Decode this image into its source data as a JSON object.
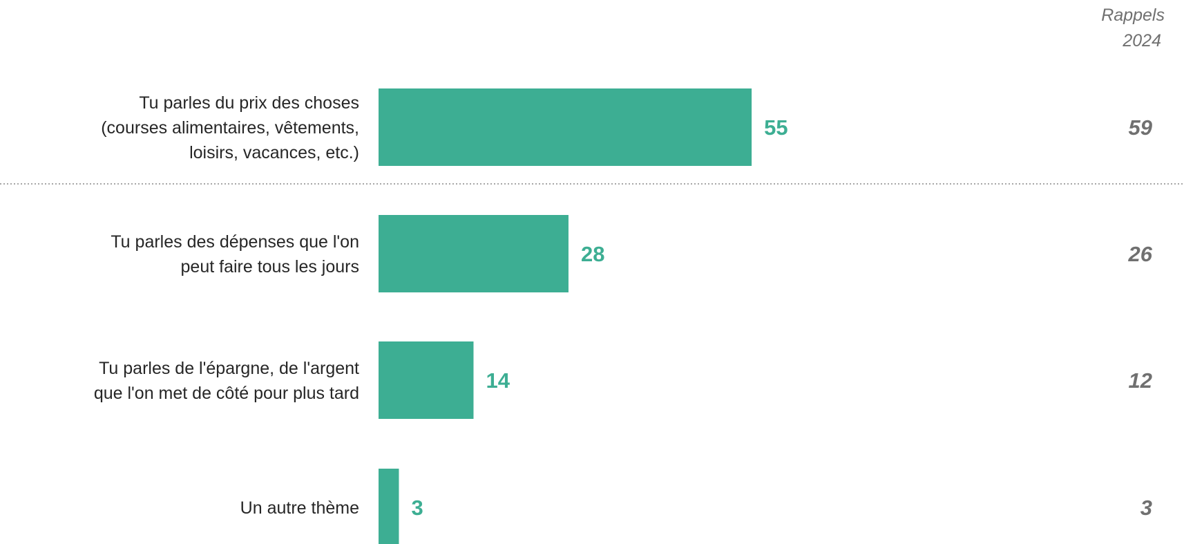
{
  "chart_data": {
    "type": "bar",
    "orientation": "horizontal",
    "categories": [
      [
        "Tu parles du prix des choses",
        "(courses alimentaires, vêtements,",
        "loisirs, vacances, etc.)"
      ],
      [
        "Tu parles des dépenses que l'on",
        "peut faire tous les jours"
      ],
      [
        "Tu parles de l'épargne, de l'argent",
        "que l'on met de côté pour plus tard"
      ],
      [
        "Un autre thème"
      ]
    ],
    "values": [
      55,
      28,
      14,
      3
    ],
    "value_labels": [
      "55",
      "28",
      "14",
      "3"
    ],
    "recalls": {
      "header": [
        "Rappels",
        "2024"
      ],
      "values": [
        "59",
        "26",
        "12",
        "3"
      ]
    },
    "xlim": [
      0,
      100
    ],
    "grid": false,
    "legend": "none",
    "separator_after_first": true,
    "colors": {
      "bar": "#3dae93",
      "value_label": "#3dae93",
      "recall": "#707070",
      "category_label": "#262626",
      "separator": "#a6a6a6"
    }
  }
}
